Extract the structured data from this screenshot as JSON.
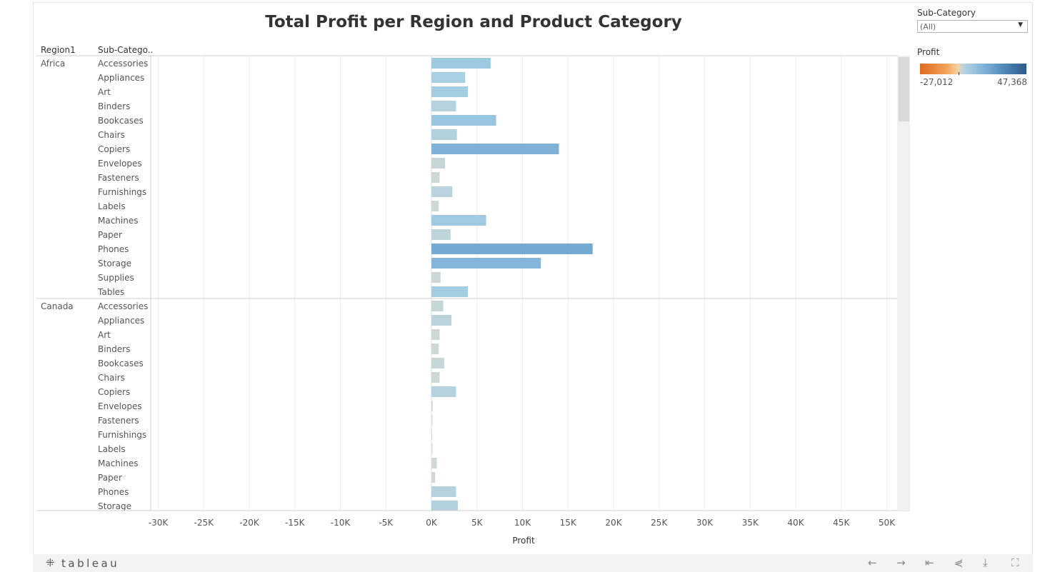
{
  "title": "Total Profit per Region and Product Category",
  "headers": {
    "region": "Region1",
    "subcategory": "Sub-Catego.."
  },
  "filter": {
    "label": "Sub-Category",
    "value": "(All)"
  },
  "legend": {
    "label": "Profit",
    "min_label": "-27,012",
    "max_label": "47,368",
    "colors": [
      "#de6a1f",
      "#f5d3a8",
      "#bcd4e3",
      "#2e5a8a"
    ]
  },
  "footer": {
    "logo_text": "tableau"
  },
  "chart_data": {
    "type": "bar",
    "orientation": "horizontal",
    "xlabel": "Profit",
    "xlim": [
      -32000,
      51000
    ],
    "x_ticks": [
      -30000,
      -25000,
      -20000,
      -15000,
      -10000,
      -5000,
      0,
      5000,
      10000,
      15000,
      20000,
      25000,
      30000,
      35000,
      40000,
      45000,
      50000
    ],
    "x_tick_labels": [
      "-30K",
      "-25K",
      "-20K",
      "-15K",
      "-10K",
      "-5K",
      "0K",
      "5K",
      "10K",
      "15K",
      "20K",
      "25K",
      "30K",
      "35K",
      "40K",
      "45K",
      "50K"
    ],
    "groups": [
      {
        "region": "Africa",
        "rows": [
          {
            "label": "Accessories",
            "value": 6500,
            "color": "#9ecae1"
          },
          {
            "label": "Appliances",
            "value": 3700,
            "color": "#a9cfe2"
          },
          {
            "label": "Art",
            "value": 4000,
            "color": "#a4cde2"
          },
          {
            "label": "Binders",
            "value": 2700,
            "color": "#b5d2de"
          },
          {
            "label": "Bookcases",
            "value": 7100,
            "color": "#98c6e0"
          },
          {
            "label": "Chairs",
            "value": 2800,
            "color": "#b2d0de"
          },
          {
            "label": "Copiers",
            "value": 14000,
            "color": "#7fb1d7"
          },
          {
            "label": "Envelopes",
            "value": 1500,
            "color": "#c6d6d7"
          },
          {
            "label": "Fasteners",
            "value": 900,
            "color": "#cdd8d6"
          },
          {
            "label": "Furnishings",
            "value": 2300,
            "color": "#bad3dc"
          },
          {
            "label": "Labels",
            "value": 800,
            "color": "#ced8d5"
          },
          {
            "label": "Machines",
            "value": 6000,
            "color": "#9fcae1"
          },
          {
            "label": "Paper",
            "value": 2100,
            "color": "#bdd4da"
          },
          {
            "label": "Phones",
            "value": 17700,
            "color": "#74a9d1"
          },
          {
            "label": "Storage",
            "value": 12000,
            "color": "#86b5da"
          },
          {
            "label": "Supplies",
            "value": 1000,
            "color": "#ccd7d6"
          },
          {
            "label": "Tables",
            "value": 4000,
            "color": "#a4cde2"
          }
        ]
      },
      {
        "region": "Canada",
        "rows": [
          {
            "label": "Accessories",
            "value": 1300,
            "color": "#c4d6d8"
          },
          {
            "label": "Appliances",
            "value": 2200,
            "color": "#bbd3db"
          },
          {
            "label": "Art",
            "value": 900,
            "color": "#cdd8d6"
          },
          {
            "label": "Binders",
            "value": 800,
            "color": "#ced8d5"
          },
          {
            "label": "Bookcases",
            "value": 1400,
            "color": "#c5d6d7"
          },
          {
            "label": "Chairs",
            "value": 900,
            "color": "#cdd8d6"
          },
          {
            "label": "Copiers",
            "value": 2700,
            "color": "#b5d2de"
          },
          {
            "label": "Envelopes",
            "value": 150,
            "color": "#d6dad5"
          },
          {
            "label": "Fasteners",
            "value": 100,
            "color": "#d6dad5"
          },
          {
            "label": "Furnishings",
            "value": 50,
            "color": "#d6dad5"
          },
          {
            "label": "Labels",
            "value": 100,
            "color": "#d6dad5"
          },
          {
            "label": "Machines",
            "value": 600,
            "color": "#d0d9d5"
          },
          {
            "label": "Paper",
            "value": 400,
            "color": "#d2d9d5"
          },
          {
            "label": "Phones",
            "value": 2700,
            "color": "#b5d2de"
          },
          {
            "label": "Storage",
            "value": 2900,
            "color": "#b2d0de"
          }
        ]
      }
    ]
  }
}
